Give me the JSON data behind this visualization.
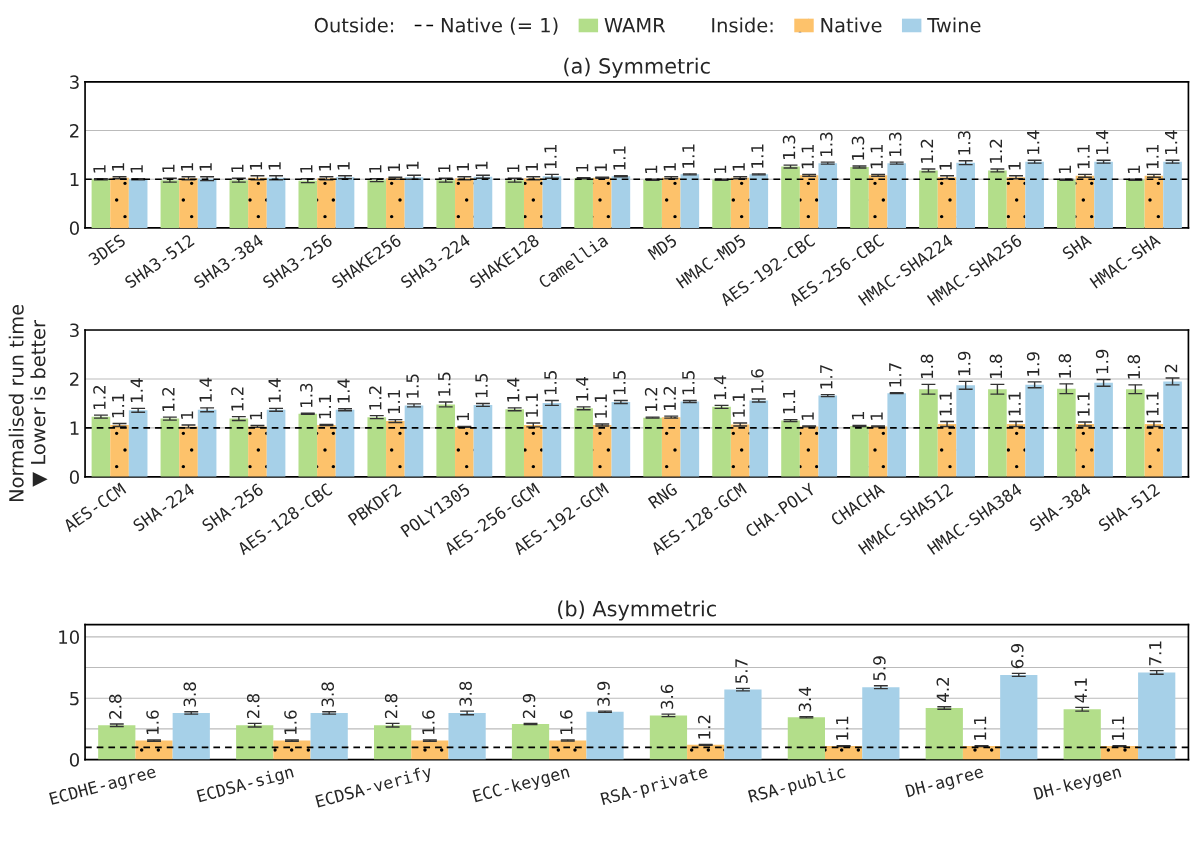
{
  "chart_data": [
    {
      "type": "bar",
      "title": "(a) Symmetric",
      "annotations": [
        "Outside:",
        "Inside:"
      ],
      "legend": "top",
      "categories": [
        "3DES",
        "SHA3-512",
        "SHA3-384",
        "SHA3-256",
        "SHAKE256",
        "SHA3-224",
        "SHAKE128",
        "Camellia",
        "MD5",
        "HMAC-MD5",
        "AES-192-CBC",
        "AES-256-CBC",
        "HMAC-SHA224",
        "HMAC-SHA256",
        "SHA",
        "HMAC-SHA"
      ],
      "series": [
        {
          "name": "WAMR",
          "color": "#b3de8a",
          "values": [
            1.0,
            0.98,
            0.98,
            0.97,
            0.98,
            0.98,
            0.98,
            1.02,
            0.99,
            0.99,
            1.26,
            1.25,
            1.18,
            1.18,
            0.99,
            0.99
          ],
          "errors": [
            0.01,
            0.04,
            0.04,
            0.04,
            0.03,
            0.04,
            0.04,
            0.01,
            0.01,
            0.01,
            0.03,
            0.02,
            0.03,
            0.03,
            0.01,
            0.01
          ],
          "value_labels": [
            "1",
            "1",
            "1",
            "1",
            "1",
            "1",
            "1",
            "1",
            "1",
            "1",
            "1.3",
            "1.3",
            "1.2",
            "1.2",
            "1",
            "1"
          ]
        },
        {
          "name": "Native",
          "color": "#fdc26b",
          "values": [
            1.03,
            1.02,
            1.03,
            1.02,
            1.02,
            1.02,
            1.02,
            1.03,
            1.03,
            1.03,
            1.08,
            1.08,
            1.04,
            1.04,
            1.07,
            1.07
          ],
          "errors": [
            0.02,
            0.03,
            0.04,
            0.03,
            0.02,
            0.03,
            0.03,
            0.01,
            0.02,
            0.02,
            0.02,
            0.02,
            0.03,
            0.03,
            0.03,
            0.03
          ],
          "value_labels": [
            "1",
            "1",
            "1",
            "1",
            "1",
            "1",
            "1",
            "1",
            "1",
            "1",
            "1.1",
            "1.1",
            "1",
            "1",
            "1.1",
            "1.1"
          ]
        },
        {
          "name": "Twine",
          "color": "#a6d0e8",
          "values": [
            1.0,
            1.01,
            1.03,
            1.04,
            1.04,
            1.05,
            1.06,
            1.06,
            1.1,
            1.1,
            1.33,
            1.33,
            1.34,
            1.36,
            1.36,
            1.36
          ],
          "errors": [
            0.01,
            0.04,
            0.04,
            0.03,
            0.04,
            0.03,
            0.04,
            0.01,
            0.01,
            0.01,
            0.02,
            0.02,
            0.04,
            0.03,
            0.03,
            0.03
          ],
          "value_labels": [
            "1",
            "1",
            "1",
            "1",
            "1",
            "1",
            "1.1",
            "1.1",
            "1.1",
            "1.1",
            "1.3",
            "1.3",
            "1.3",
            "1.4",
            "1.4",
            "1.4"
          ]
        }
      ],
      "ylim": [
        0,
        3
      ],
      "yticks": [
        0,
        1,
        2,
        3
      ],
      "grid": "y",
      "ref_lines": [
        {
          "axis": "y",
          "value": 1,
          "label": "Native (= 1)",
          "line_style": "dashed",
          "color": "#000000"
        }
      ]
    },
    {
      "type": "bar",
      "ylabel": "Normalised run time\n▼ Lower is better",
      "categories": [
        "AES-CCM",
        "SHA-224",
        "SHA-256",
        "AES-128-CBC",
        "PBKDF2",
        "POLY1305",
        "AES-256-GCM",
        "AES-192-GCM",
        "RNG",
        "AES-128-GCM",
        "CHA-POLY",
        "CHACHA",
        "HMAC-SHA512",
        "HMAC-SHA384",
        "SHA-384",
        "SHA-512"
      ],
      "series": [
        {
          "color": "#b3de8a",
          "values": [
            1.23,
            1.19,
            1.19,
            1.29,
            1.22,
            1.48,
            1.38,
            1.4,
            1.21,
            1.43,
            1.15,
            1.04,
            1.79,
            1.79,
            1.8,
            1.79
          ],
          "errors": [
            0.03,
            0.03,
            0.04,
            0.01,
            0.03,
            0.05,
            0.03,
            0.03,
            0.01,
            0.03,
            0.02,
            0.01,
            0.1,
            0.1,
            0.1,
            0.09
          ],
          "value_labels": [
            "1.2",
            "1.2",
            "1.2",
            "1.3",
            "1.2",
            "1.5",
            "1.4",
            "1.4",
            "1.2",
            "1.4",
            "1.1",
            "1",
            "1.8",
            "1.8",
            "1.8",
            "1.8"
          ]
        },
        {
          "color": "#fdc26b",
          "values": [
            1.06,
            1.03,
            1.03,
            1.06,
            1.14,
            1.02,
            1.06,
            1.06,
            1.22,
            1.07,
            1.03,
            1.03,
            1.08,
            1.08,
            1.08,
            1.08
          ],
          "errors": [
            0.03,
            0.03,
            0.02,
            0.01,
            0.03,
            0.01,
            0.04,
            0.02,
            0.02,
            0.03,
            0.01,
            0.01,
            0.05,
            0.05,
            0.04,
            0.05
          ],
          "value_labels": [
            "1.1",
            "1",
            "1",
            "1.1",
            "1.1",
            "1",
            "1.1",
            "1.1",
            "1.2",
            "1.1",
            "1",
            "1",
            "1.1",
            "1.1",
            "1.1",
            "1.1"
          ]
        },
        {
          "color": "#a6d0e8",
          "values": [
            1.36,
            1.37,
            1.37,
            1.37,
            1.46,
            1.47,
            1.51,
            1.53,
            1.54,
            1.56,
            1.66,
            1.71,
            1.87,
            1.88,
            1.92,
            1.95
          ],
          "errors": [
            0.04,
            0.04,
            0.03,
            0.02,
            0.03,
            0.03,
            0.05,
            0.03,
            0.02,
            0.03,
            0.02,
            0.01,
            0.08,
            0.06,
            0.07,
            0.07
          ],
          "value_labels": [
            "1.4",
            "1.4",
            "1.4",
            "1.4",
            "1.5",
            "1.5",
            "1.5",
            "1.5",
            "1.5",
            "1.6",
            "1.7",
            "1.7",
            "1.9",
            "1.9",
            "1.9",
            "2"
          ]
        }
      ],
      "ylim": [
        0,
        3
      ],
      "yticks": [
        0,
        1,
        2,
        3
      ],
      "grid": "y",
      "ref_lines": [
        {
          "axis": "y",
          "value": 1,
          "line_style": "dashed",
          "color": "#000000"
        }
      ]
    },
    {
      "type": "bar",
      "title": "(b) Asymmetric",
      "categories": [
        "ECDHE-agree",
        "ECDSA-sign",
        "ECDSA-verify",
        "ECC-keygen",
        "RSA-private",
        "RSA-public",
        "DH-agree",
        "DH-keygen"
      ],
      "series": [
        {
          "color": "#b3de8a",
          "values": [
            2.8,
            2.8,
            2.8,
            2.9,
            3.6,
            3.45,
            4.2,
            4.1
          ],
          "errors": [
            0.1,
            0.15,
            0.15,
            0.05,
            0.1,
            0.05,
            0.1,
            0.15
          ],
          "value_labels": [
            "2.8",
            "2.8",
            "2.8",
            "2.9",
            "3.6",
            "3.4",
            "4.2",
            "4.1"
          ]
        },
        {
          "color": "#fdc26b",
          "values": [
            1.55,
            1.55,
            1.55,
            1.56,
            1.2,
            1.1,
            1.1,
            1.1
          ],
          "errors": [
            0.05,
            0.05,
            0.05,
            0.05,
            0.03,
            0.03,
            0.03,
            0.03
          ],
          "value_labels": [
            "1.6",
            "1.6",
            "1.6",
            "1.6",
            "1.2",
            "1.1",
            "1.1",
            "1.1"
          ]
        },
        {
          "color": "#a6d0e8",
          "values": [
            3.8,
            3.8,
            3.8,
            3.9,
            5.7,
            5.9,
            6.9,
            7.1
          ],
          "errors": [
            0.1,
            0.1,
            0.15,
            0.05,
            0.1,
            0.12,
            0.12,
            0.15
          ],
          "value_labels": [
            "3.8",
            "3.8",
            "3.8",
            "3.9",
            "5.7",
            "5.9",
            "6.9",
            "7.1"
          ]
        }
      ],
      "ylim": [
        0,
        11
      ],
      "yticks": [
        0,
        {
          "value": 2.5,
          "label": null
        },
        5,
        {
          "value": 7.5,
          "label": null
        },
        10
      ],
      "grid": "y",
      "ref_lines": [
        {
          "axis": "y",
          "value": 1,
          "line_style": "dashed",
          "color": "#000000"
        }
      ]
    }
  ]
}
